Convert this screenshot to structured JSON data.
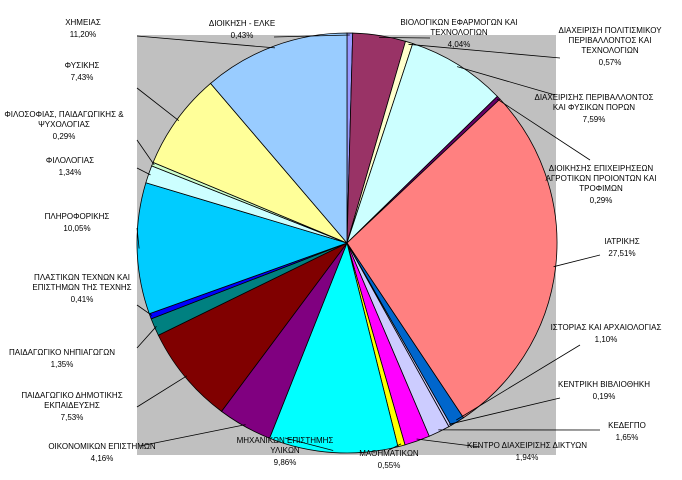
{
  "chart_data": {
    "type": "pie",
    "title": "",
    "plot_area_color": "#c0c0c0",
    "slices": [
      {
        "label": "ΔΙΟΙΚΗΣΗ - ΕΛΚΕ",
        "value_label": "0,43%",
        "value": 0.43,
        "color": "#9999ff"
      },
      {
        "label": "ΒΙΟΛΟΓΙΚΩΝ ΕΦΑΡΜΟΓΩΝ ΚΑΙ ΤΕΧΝΟΛΟΓΙΩΝ",
        "value_label": "4,04%",
        "value": 4.04,
        "color": "#993366"
      },
      {
        "label": "ΔΙΑΧΕΙΡΙΣΗ ΠΟΛΙΤΙΣΜΙΚΟΥ ΠΕΡΙΒΑΛΛΟΝΤΟΣ ΚΑΙ ΤΕΧΝΟΛΟΓΙΩΝ",
        "value_label": "0,57%",
        "value": 0.57,
        "color": "#ffffcc"
      },
      {
        "label": "ΔΙΑΧΕΙΡΙΣΗΣ ΠΕΡΙΒΑΛΛΟΝΤΟΣ ΚΑΙ ΦΥΣΙΚΩΝ ΠΟΡΩΝ",
        "value_label": "7,59%",
        "value": 7.59,
        "color": "#ccffff"
      },
      {
        "label": "ΔΙΟΙΚΗΣΗΣ ΕΠΙΧΕΙΡΗΣΕΩΝ ΑΓΡΟΤΙΚΩΝ ΠΡΟΙΟΝΤΩΝ ΚΑΙ ΤΡΟΦΙΜΩΝ",
        "value_label": "0,29%",
        "value": 0.29,
        "color": "#660066"
      },
      {
        "label": "ΙΑΤΡΙΚΗΣ",
        "value_label": "27,51%",
        "value": 27.51,
        "color": "#ff8080"
      },
      {
        "label": "ΙΣΤΟΡΙΑΣ ΚΑΙ ΑΡΧΑΙΟΛΟΓΙΑΣ",
        "value_label": "1,10%",
        "value": 1.1,
        "color": "#0066cc"
      },
      {
        "label": "ΚΕΝΤΡΙΚΗ ΒΙΒΛΙΟΘΗΚΗ",
        "value_label": "0,19%",
        "value": 0.19,
        "color": "#ccccff"
      },
      {
        "label": "ΚΕΔΕΓΠΟ",
        "value_label": "1,65%",
        "value": 1.65,
        "color": "#ccccff"
      },
      {
        "label": "ΚΕΝΤΡΟ ΔΙΑΧΕΙΡΙΣΗΣ ΔΙΚΤΥΩΝ",
        "value_label": "1,94%",
        "value": 1.94,
        "color": "#ff00ff"
      },
      {
        "label": "ΜΑΘΗΜΑΤΙΚΩΝ",
        "value_label": "0,55%",
        "value": 0.55,
        "color": "#ffff00"
      },
      {
        "label": "ΜΗΧΑΝΙΚΩΝ ΕΠΙΣΤΗΜΗΣ ΥΛΙΚΩΝ",
        "value_label": "9,86%",
        "value": 9.86,
        "color": "#00ffff"
      },
      {
        "label": "ΟΙΚΟΝΟΜΙΚΩΝ ΕΠΙΣΤΗΜΩΝ",
        "value_label": "4,16%",
        "value": 4.16,
        "color": "#800080"
      },
      {
        "label": "ΠΑΙΔΑΓΩΓΙΚΟ ΔΗΜΟΤΙΚΗΣ ΕΚΠΑΙΔΕΥΣΗΣ",
        "value_label": "7,53%",
        "value": 7.53,
        "color": "#800000"
      },
      {
        "label": "ΠΑΙΔΑΓΩΓΙΚΟ ΝΗΠΙΑΓΩΓΩΝ",
        "value_label": "1,35%",
        "value": 1.35,
        "color": "#008080"
      },
      {
        "label": "ΠΛΑΣΤΙΚΩΝ ΤΕΧΝΩΝ ΚΑΙ ΕΠΙΣΤΗΜΩΝ ΤΗΣ ΤΕΧΝΗΣ",
        "value_label": "0,41%",
        "value": 0.41,
        "color": "#0000ff"
      },
      {
        "label": "ΠΛΗΡΟΦΟΡΙΚΗΣ",
        "value_label": "10,05%",
        "value": 10.05,
        "color": "#00ccff"
      },
      {
        "label": "ΦΙΛΟΛΟΓΙΑΣ",
        "value_label": "1,34%",
        "value": 1.34,
        "color": "#ccffff"
      },
      {
        "label": "ΦΙΛΟΣΟΦΙΑΣ, ΠΑΙΔΑΓΩΓΙΚΗΣ & ΨΥΧΟΛΟΓΙΑΣ",
        "value_label": "0,29%",
        "value": 0.29,
        "color": "#ccffcc"
      },
      {
        "label": "ΦΥΣΙΚΗΣ",
        "value_label": "7,43%",
        "value": 7.43,
        "color": "#ffff99"
      },
      {
        "label": "ΧΗΜΕΙΑΣ",
        "value_label": "11,20%",
        "value": 11.2,
        "color": "#99ccff"
      }
    ]
  }
}
